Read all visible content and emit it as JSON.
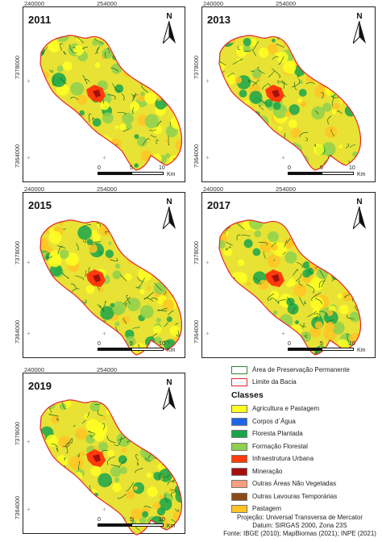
{
  "coords": {
    "x_left": "240000",
    "x_right": "254000",
    "y_top": "7378000",
    "y_bottom": "7364000"
  },
  "panels": [
    {
      "year": "2011"
    },
    {
      "year": "2013"
    },
    {
      "year": "2015"
    },
    {
      "year": "2017"
    },
    {
      "year": "2019"
    }
  ],
  "north_label": "N",
  "scale": {
    "t0": "0",
    "t1": "5",
    "t2": "10",
    "unit": "Km"
  },
  "legend": {
    "app_label": "Área de Preservação Permanente",
    "limit_label": "Limite da Bacia",
    "classes_title": "Classes",
    "classes": [
      {
        "label": "Agricultura e Pastagem",
        "color": "#ffff22"
      },
      {
        "label": "Corpos d´Água",
        "color": "#1e64e6"
      },
      {
        "label": "Floresta Plantada",
        "color": "#19a64b"
      },
      {
        "label": "Formação Florestal",
        "color": "#8ed04f"
      },
      {
        "label": "Infraestrutura Urbana",
        "color": "#ff3b0a"
      },
      {
        "label": "Mineração",
        "color": "#a50f0f"
      },
      {
        "label": "Outras Áreas Não Vegetadas",
        "color": "#ff9d80"
      },
      {
        "label": "Outras Lavouras Temporárias",
        "color": "#8b4a16"
      },
      {
        "label": "Pastagem",
        "color": "#ffc425"
      }
    ]
  },
  "credits": {
    "line1": "Projeção: Universal Transversa de Mercator",
    "line2": "Datum: SIRGAS 2000, Zona 23S",
    "line3": "Fonte: IBGE (2010); MapBiomas (2021); INPE (2021)"
  }
}
